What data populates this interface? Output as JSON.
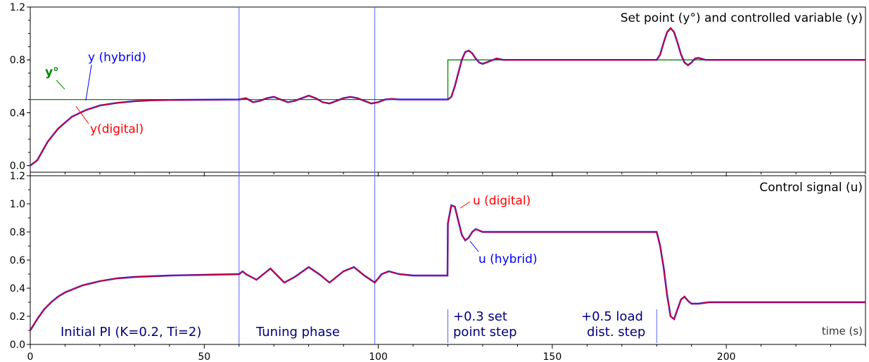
{
  "chart_data": [
    {
      "type": "line",
      "title": "Set point (y°) and controlled variable (y)",
      "xlim": [
        0,
        240
      ],
      "ylim": [
        -0.05,
        1.2
      ],
      "yticks": [
        "0.0",
        "0.4",
        "0.8",
        "1.2"
      ],
      "grid": false,
      "legend": "inline labels",
      "series": [
        {
          "name": "y°",
          "color": "#008800",
          "step": true,
          "x": [
            0,
            120,
            120,
            240
          ],
          "y": [
            0.5,
            0.5,
            0.8,
            0.8
          ]
        },
        {
          "name": "y (hybrid)",
          "color": "#0000ff",
          "x": [
            0,
            2,
            5,
            8,
            12,
            16,
            20,
            25,
            30,
            35,
            40,
            60,
            62,
            64,
            66,
            68,
            70,
            72,
            74,
            76,
            78,
            80,
            82,
            84,
            86,
            88,
            90,
            92,
            94,
            96,
            98,
            100,
            102,
            104,
            106,
            110,
            114,
            118,
            120,
            121,
            122,
            123,
            124,
            125,
            126,
            127,
            128,
            129,
            130,
            132,
            134,
            136,
            140,
            145,
            150,
            155,
            160,
            165,
            170,
            175,
            180,
            181,
            182,
            183,
            184,
            185,
            186,
            187,
            188,
            189,
            190,
            191,
            192,
            194,
            196,
            200,
            205,
            210,
            220,
            240
          ],
          "y": [
            0.0,
            0.04,
            0.18,
            0.28,
            0.37,
            0.42,
            0.455,
            0.475,
            0.488,
            0.494,
            0.497,
            0.5,
            0.51,
            0.48,
            0.49,
            0.51,
            0.52,
            0.5,
            0.48,
            0.49,
            0.51,
            0.53,
            0.51,
            0.48,
            0.47,
            0.49,
            0.51,
            0.52,
            0.51,
            0.49,
            0.47,
            0.48,
            0.5,
            0.505,
            0.5,
            0.5,
            0.5,
            0.5,
            0.5,
            0.52,
            0.6,
            0.7,
            0.8,
            0.86,
            0.87,
            0.85,
            0.81,
            0.78,
            0.77,
            0.79,
            0.81,
            0.8,
            0.8,
            0.8,
            0.8,
            0.8,
            0.8,
            0.8,
            0.8,
            0.8,
            0.8,
            0.84,
            0.93,
            1.01,
            1.04,
            1.01,
            0.93,
            0.84,
            0.78,
            0.76,
            0.78,
            0.81,
            0.815,
            0.8,
            0.8,
            0.8,
            0.8,
            0.8,
            0.8,
            0.8
          ]
        },
        {
          "name": "y(digital)",
          "color": "#ff0000",
          "x": [
            0,
            2,
            5,
            8,
            12,
            16,
            20,
            25,
            30,
            35,
            40,
            60,
            62,
            64,
            66,
            68,
            70,
            72,
            74,
            76,
            78,
            80,
            82,
            84,
            86,
            88,
            90,
            92,
            94,
            96,
            98,
            100,
            102,
            104,
            106,
            110,
            114,
            118,
            120,
            121,
            122,
            123,
            124,
            125,
            126,
            127,
            128,
            129,
            130,
            132,
            134,
            136,
            140,
            145,
            150,
            155,
            160,
            165,
            170,
            175,
            180,
            181,
            182,
            183,
            184,
            185,
            186,
            187,
            188,
            189,
            190,
            191,
            192,
            194,
            196,
            200,
            205,
            210,
            220,
            240
          ],
          "y": [
            0.0,
            0.04,
            0.18,
            0.28,
            0.37,
            0.42,
            0.455,
            0.475,
            0.488,
            0.494,
            0.497,
            0.5,
            0.51,
            0.48,
            0.49,
            0.51,
            0.52,
            0.5,
            0.48,
            0.49,
            0.51,
            0.53,
            0.51,
            0.48,
            0.47,
            0.49,
            0.51,
            0.52,
            0.51,
            0.49,
            0.47,
            0.48,
            0.5,
            0.505,
            0.5,
            0.5,
            0.5,
            0.5,
            0.5,
            0.52,
            0.6,
            0.7,
            0.8,
            0.86,
            0.87,
            0.85,
            0.81,
            0.78,
            0.77,
            0.79,
            0.81,
            0.8,
            0.8,
            0.8,
            0.8,
            0.8,
            0.8,
            0.8,
            0.8,
            0.8,
            0.8,
            0.84,
            0.93,
            1.01,
            1.04,
            1.01,
            0.93,
            0.84,
            0.78,
            0.76,
            0.78,
            0.81,
            0.815,
            0.8,
            0.8,
            0.8,
            0.8,
            0.8,
            0.8,
            0.8
          ]
        }
      ],
      "annotations": [
        "y°",
        "y (hybrid)",
        "y(digital)"
      ]
    },
    {
      "type": "line",
      "title": "Control signal (u)",
      "xlabel": "time (s)",
      "xlim": [
        0,
        240
      ],
      "ylim": [
        0.0,
        1.2
      ],
      "xticks": [
        "0",
        "50",
        "100",
        "150",
        "200"
      ],
      "yticks": [
        "0.0",
        "0.2",
        "0.4",
        "0.6",
        "0.8",
        "1.0",
        "1.2"
      ],
      "grid": false,
      "legend": "inline labels",
      "series": [
        {
          "name": "u (hybrid)",
          "color": "#0000ff",
          "x": [
            0,
            2,
            4,
            6,
            8,
            10,
            12,
            15,
            20,
            25,
            30,
            40,
            50,
            60,
            61,
            62,
            65,
            69,
            73,
            76,
            80,
            83,
            86,
            90,
            93,
            96,
            99,
            101,
            103,
            106,
            110,
            115,
            119.9,
            120,
            121,
            122,
            123,
            124,
            125,
            126,
            127,
            128,
            129,
            130,
            132,
            135,
            140,
            150,
            160,
            170,
            179.9,
            180,
            181,
            182,
            183,
            184,
            185,
            186,
            187,
            188,
            189,
            190,
            192,
            195,
            200,
            210,
            220,
            240
          ],
          "y": [
            0.1,
            0.18,
            0.25,
            0.3,
            0.34,
            0.37,
            0.39,
            0.42,
            0.45,
            0.47,
            0.48,
            0.49,
            0.495,
            0.5,
            0.52,
            0.5,
            0.46,
            0.54,
            0.44,
            0.48,
            0.55,
            0.5,
            0.44,
            0.52,
            0.55,
            0.49,
            0.44,
            0.5,
            0.52,
            0.5,
            0.49,
            0.49,
            0.49,
            0.86,
            0.99,
            0.98,
            0.88,
            0.78,
            0.74,
            0.76,
            0.8,
            0.82,
            0.81,
            0.8,
            0.8,
            0.8,
            0.8,
            0.8,
            0.8,
            0.8,
            0.8,
            0.8,
            0.7,
            0.55,
            0.35,
            0.2,
            0.18,
            0.25,
            0.32,
            0.34,
            0.31,
            0.29,
            0.29,
            0.3,
            0.3,
            0.3,
            0.3,
            0.3
          ]
        },
        {
          "name": "u (digital)",
          "color": "#ff0000",
          "x": [
            0,
            2,
            4,
            6,
            8,
            10,
            12,
            15,
            20,
            25,
            30,
            40,
            50,
            60,
            61,
            62,
            65,
            69,
            73,
            76,
            80,
            83,
            86,
            90,
            93,
            96,
            99,
            101,
            103,
            106,
            110,
            115,
            119.9,
            120,
            121,
            122,
            123,
            124,
            125,
            126,
            127,
            128,
            129,
            130,
            132,
            135,
            140,
            150,
            160,
            170,
            179.9,
            180,
            181,
            182,
            183,
            184,
            185,
            186,
            187,
            188,
            189,
            190,
            192,
            195,
            200,
            210,
            220,
            240
          ],
          "y": [
            0.1,
            0.18,
            0.25,
            0.3,
            0.34,
            0.37,
            0.39,
            0.42,
            0.45,
            0.47,
            0.48,
            0.49,
            0.495,
            0.5,
            0.52,
            0.5,
            0.46,
            0.54,
            0.44,
            0.48,
            0.55,
            0.5,
            0.44,
            0.52,
            0.55,
            0.49,
            0.44,
            0.5,
            0.52,
            0.5,
            0.49,
            0.49,
            0.49,
            0.86,
            0.99,
            0.98,
            0.88,
            0.78,
            0.74,
            0.76,
            0.8,
            0.82,
            0.81,
            0.8,
            0.8,
            0.8,
            0.8,
            0.8,
            0.8,
            0.8,
            0.8,
            0.8,
            0.7,
            0.55,
            0.35,
            0.2,
            0.18,
            0.25,
            0.32,
            0.34,
            0.31,
            0.29,
            0.29,
            0.3,
            0.3,
            0.3,
            0.3,
            0.3
          ]
        }
      ],
      "annotations": [
        "u (digital)",
        "u (hybrid)"
      ],
      "vertical_markers": [
        60,
        99,
        120,
        180
      ],
      "phase_labels": [
        "Initial PI (K=0.2, Ti=2)",
        "Tuning phase",
        "+0.3 set",
        "point step",
        "+0.5 load",
        "dist. step"
      ]
    }
  ]
}
